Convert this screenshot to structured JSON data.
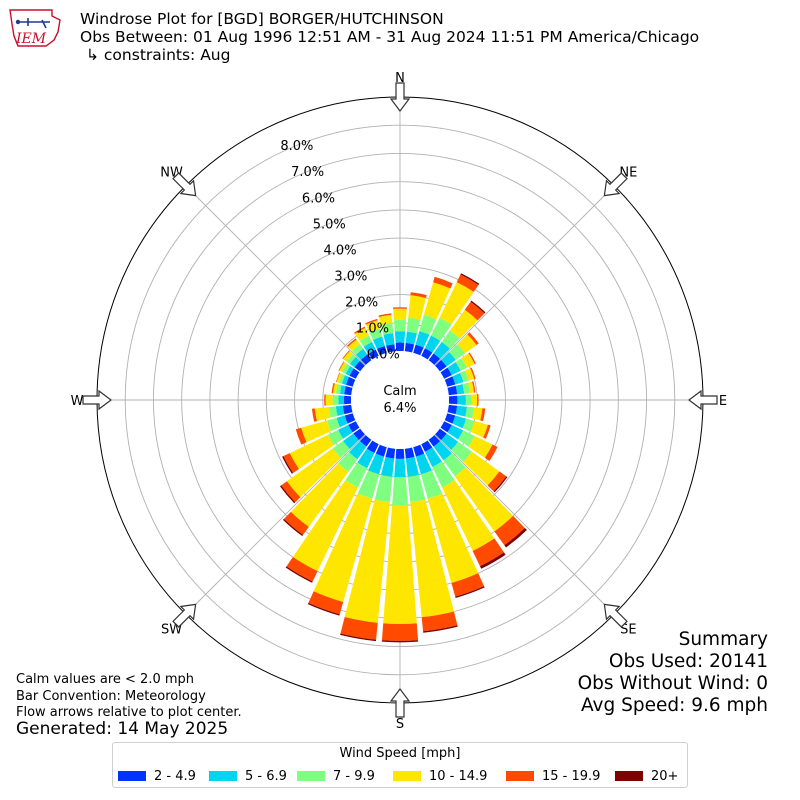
{
  "header": {
    "title": "Windrose Plot for [BGD] BORGER/HUTCHINSON",
    "obs_between": "Obs Between: 01 Aug 1996 12:51 AM - 31 Aug 2024 11:51 PM America/Chicago",
    "constraints": "↳ constraints: Aug"
  },
  "logo": {
    "text": "IEM",
    "color": "#c8102e",
    "accent": "#1f3a93"
  },
  "notes": {
    "calm_def": "Calm values are < 2.0 mph",
    "bar_convention": "Bar Convention: Meteorology",
    "flow_arrows": "Flow arrows relative to plot center.",
    "generated": "Generated: 14 May 2025"
  },
  "summary": {
    "title": "Summary",
    "obs_used": "Obs Used: 20141",
    "obs_without_wind": "Obs Without Wind: 0",
    "avg_speed": "Avg Speed: 9.6 mph"
  },
  "chart_data": {
    "type": "windrose",
    "directions_deg": [
      0,
      10,
      20,
      30,
      40,
      50,
      60,
      70,
      80,
      90,
      100,
      110,
      120,
      130,
      140,
      150,
      160,
      170,
      180,
      190,
      200,
      210,
      220,
      230,
      240,
      250,
      260,
      270,
      280,
      290,
      300,
      310,
      320,
      330,
      340,
      350
    ],
    "compass_labels": [
      {
        "label": "N",
        "deg": 0
      },
      {
        "label": "NE",
        "deg": 45
      },
      {
        "label": "E",
        "deg": 90
      },
      {
        "label": "SE",
        "deg": 135
      },
      {
        "label": "S",
        "deg": 180
      },
      {
        "label": "SW",
        "deg": 225
      },
      {
        "label": "W",
        "deg": 270
      },
      {
        "label": "NW",
        "deg": 315
      }
    ],
    "radial_ticks": [
      "0.0%",
      "1.0%",
      "2.0%",
      "3.0%",
      "4.0%",
      "5.0%",
      "6.0%",
      "7.0%",
      "8.0%"
    ],
    "radial_tick_values": [
      0,
      1,
      2,
      3,
      4,
      5,
      6,
      7,
      8
    ],
    "rmax": 9,
    "calm_label": "Calm",
    "calm_value": "6.4%",
    "legend_title": "Wind Speed [mph]",
    "bins": [
      {
        "label": "2 - 4.9",
        "color": "#0033ff"
      },
      {
        "label": "5 - 6.9",
        "color": "#00d4ef"
      },
      {
        "label": "7 - 9.9",
        "color": "#7fff7f"
      },
      {
        "label": "10 - 14.9",
        "color": "#ffe600"
      },
      {
        "label": "15 - 19.9",
        "color": "#ff4a00"
      },
      {
        "label": "20+",
        "color": "#7f0000"
      }
    ],
    "cumulative_pct": [
      [
        0.3,
        0.7,
        1.1,
        1.5,
        1.55,
        1.55
      ],
      [
        0.3,
        0.7,
        1.2,
        2.0,
        2.1,
        2.1
      ],
      [
        0.3,
        0.8,
        1.4,
        2.6,
        2.8,
        2.8
      ],
      [
        0.3,
        0.8,
        1.5,
        2.9,
        3.2,
        3.25
      ],
      [
        0.3,
        0.8,
        1.3,
        2.2,
        2.55,
        2.6
      ],
      [
        0.3,
        0.7,
        1.1,
        1.6,
        1.7,
        1.7
      ],
      [
        0.3,
        0.65,
        0.9,
        1.2,
        1.25,
        1.25
      ],
      [
        0.3,
        0.6,
        0.8,
        1.0,
        1.05,
        1.05
      ],
      [
        0.3,
        0.55,
        0.75,
        0.9,
        0.95,
        0.95
      ],
      [
        0.3,
        0.6,
        0.8,
        1.0,
        1.05,
        1.05
      ],
      [
        0.3,
        0.65,
        0.9,
        1.2,
        1.3,
        1.3
      ],
      [
        0.3,
        0.7,
        1.0,
        1.5,
        1.6,
        1.6
      ],
      [
        0.3,
        0.75,
        1.2,
        1.9,
        2.1,
        2.1
      ],
      [
        0.3,
        0.8,
        1.4,
        2.6,
        2.9,
        2.95
      ],
      [
        0.3,
        0.9,
        1.6,
        4.0,
        4.6,
        4.7
      ],
      [
        0.3,
        0.9,
        1.7,
        4.2,
        4.8,
        4.9
      ],
      [
        0.35,
        1.0,
        1.9,
        5.0,
        5.5,
        5.55
      ],
      [
        0.35,
        1.0,
        1.9,
        6.0,
        6.5,
        6.55
      ],
      [
        0.35,
        1.0,
        2.0,
        6.2,
        6.8,
        6.85
      ],
      [
        0.35,
        1.0,
        1.9,
        6.2,
        6.8,
        6.85
      ],
      [
        0.35,
        1.0,
        1.9,
        5.7,
        6.15,
        6.2
      ],
      [
        0.35,
        0.95,
        1.7,
        5.0,
        5.4,
        5.45
      ],
      [
        0.3,
        0.85,
        1.4,
        3.8,
        4.15,
        4.2
      ],
      [
        0.3,
        0.75,
        1.2,
        3.2,
        3.45,
        3.5
      ],
      [
        0.3,
        0.7,
        1.1,
        2.6,
        2.85,
        2.9
      ],
      [
        0.3,
        0.6,
        0.95,
        1.9,
        2.1,
        2.1
      ],
      [
        0.3,
        0.55,
        0.8,
        1.3,
        1.4,
        1.4
      ],
      [
        0.25,
        0.45,
        0.65,
        0.9,
        0.95,
        0.95
      ],
      [
        0.25,
        0.4,
        0.55,
        0.65,
        0.7,
        0.7
      ],
      [
        0.25,
        0.4,
        0.5,
        0.6,
        0.62,
        0.62
      ],
      [
        0.25,
        0.4,
        0.55,
        0.65,
        0.68,
        0.68
      ],
      [
        0.25,
        0.45,
        0.6,
        0.75,
        0.78,
        0.78
      ],
      [
        0.25,
        0.5,
        0.7,
        0.9,
        0.95,
        0.95
      ],
      [
        0.25,
        0.55,
        0.8,
        1.1,
        1.15,
        1.15
      ],
      [
        0.25,
        0.6,
        0.9,
        1.2,
        1.25,
        1.25
      ],
      [
        0.25,
        0.65,
        1.0,
        1.3,
        1.35,
        1.35
      ]
    ]
  }
}
